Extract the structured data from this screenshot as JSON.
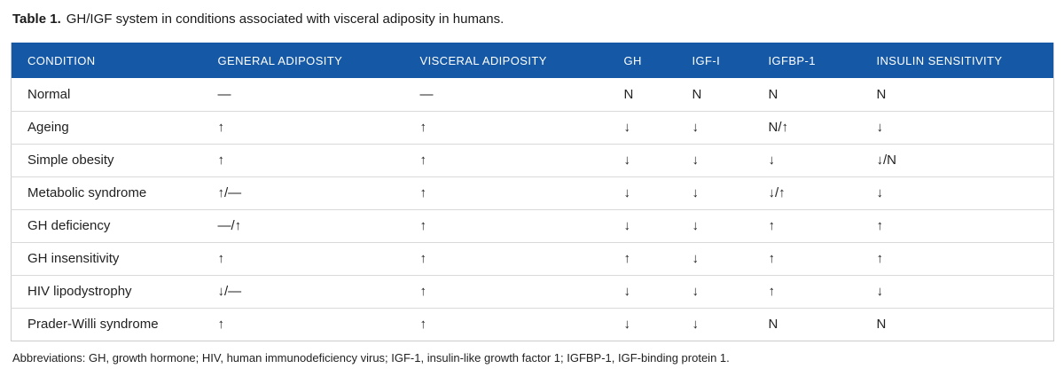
{
  "caption": {
    "label": "Table 1.",
    "text": "GH/IGF system in conditions associated with visceral adiposity in humans."
  },
  "table": {
    "header_bg": "#1558A6",
    "header_text_color": "#ffffff",
    "columns": [
      "CONDITION",
      "GENERAL ADIPOSITY",
      "VISCERAL ADIPOSITY",
      "GH",
      "IGF-I",
      "IGFBP-1",
      "INSULIN SENSITIVITY"
    ],
    "rows": [
      {
        "condition": "Normal",
        "values": [
          "—",
          "—",
          "N",
          "N",
          "N",
          "N"
        ]
      },
      {
        "condition": "Ageing",
        "values": [
          "↑",
          "↑",
          "↓",
          "↓",
          "N/↑",
          "↓"
        ]
      },
      {
        "condition": "Simple obesity",
        "values": [
          "↑",
          "↑",
          "↓",
          "↓",
          "↓",
          "↓/N"
        ]
      },
      {
        "condition": "Metabolic syndrome",
        "values": [
          "↑/—",
          "↑",
          "↓",
          "↓",
          "↓/↑",
          "↓"
        ]
      },
      {
        "condition": "GH deficiency",
        "values": [
          "—/↑",
          "↑",
          "↓",
          "↓",
          "↑",
          "↑"
        ]
      },
      {
        "condition": "GH insensitivity",
        "values": [
          "↑",
          "↑",
          "↑",
          "↓",
          "↑",
          "↑"
        ]
      },
      {
        "condition": "HIV lipodystrophy",
        "values": [
          "↓/—",
          "↑",
          "↓",
          "↓",
          "↑",
          "↓"
        ]
      },
      {
        "condition": "Prader-Willi syndrome",
        "values": [
          "↑",
          "↑",
          "↓",
          "↓",
          "N",
          "N"
        ]
      }
    ]
  },
  "footnote": "Abbreviations: GH, growth hormone; HIV, human immunodeficiency virus; IGF-1, insulin-like growth factor 1; IGFBP-1, IGF-binding protein 1."
}
